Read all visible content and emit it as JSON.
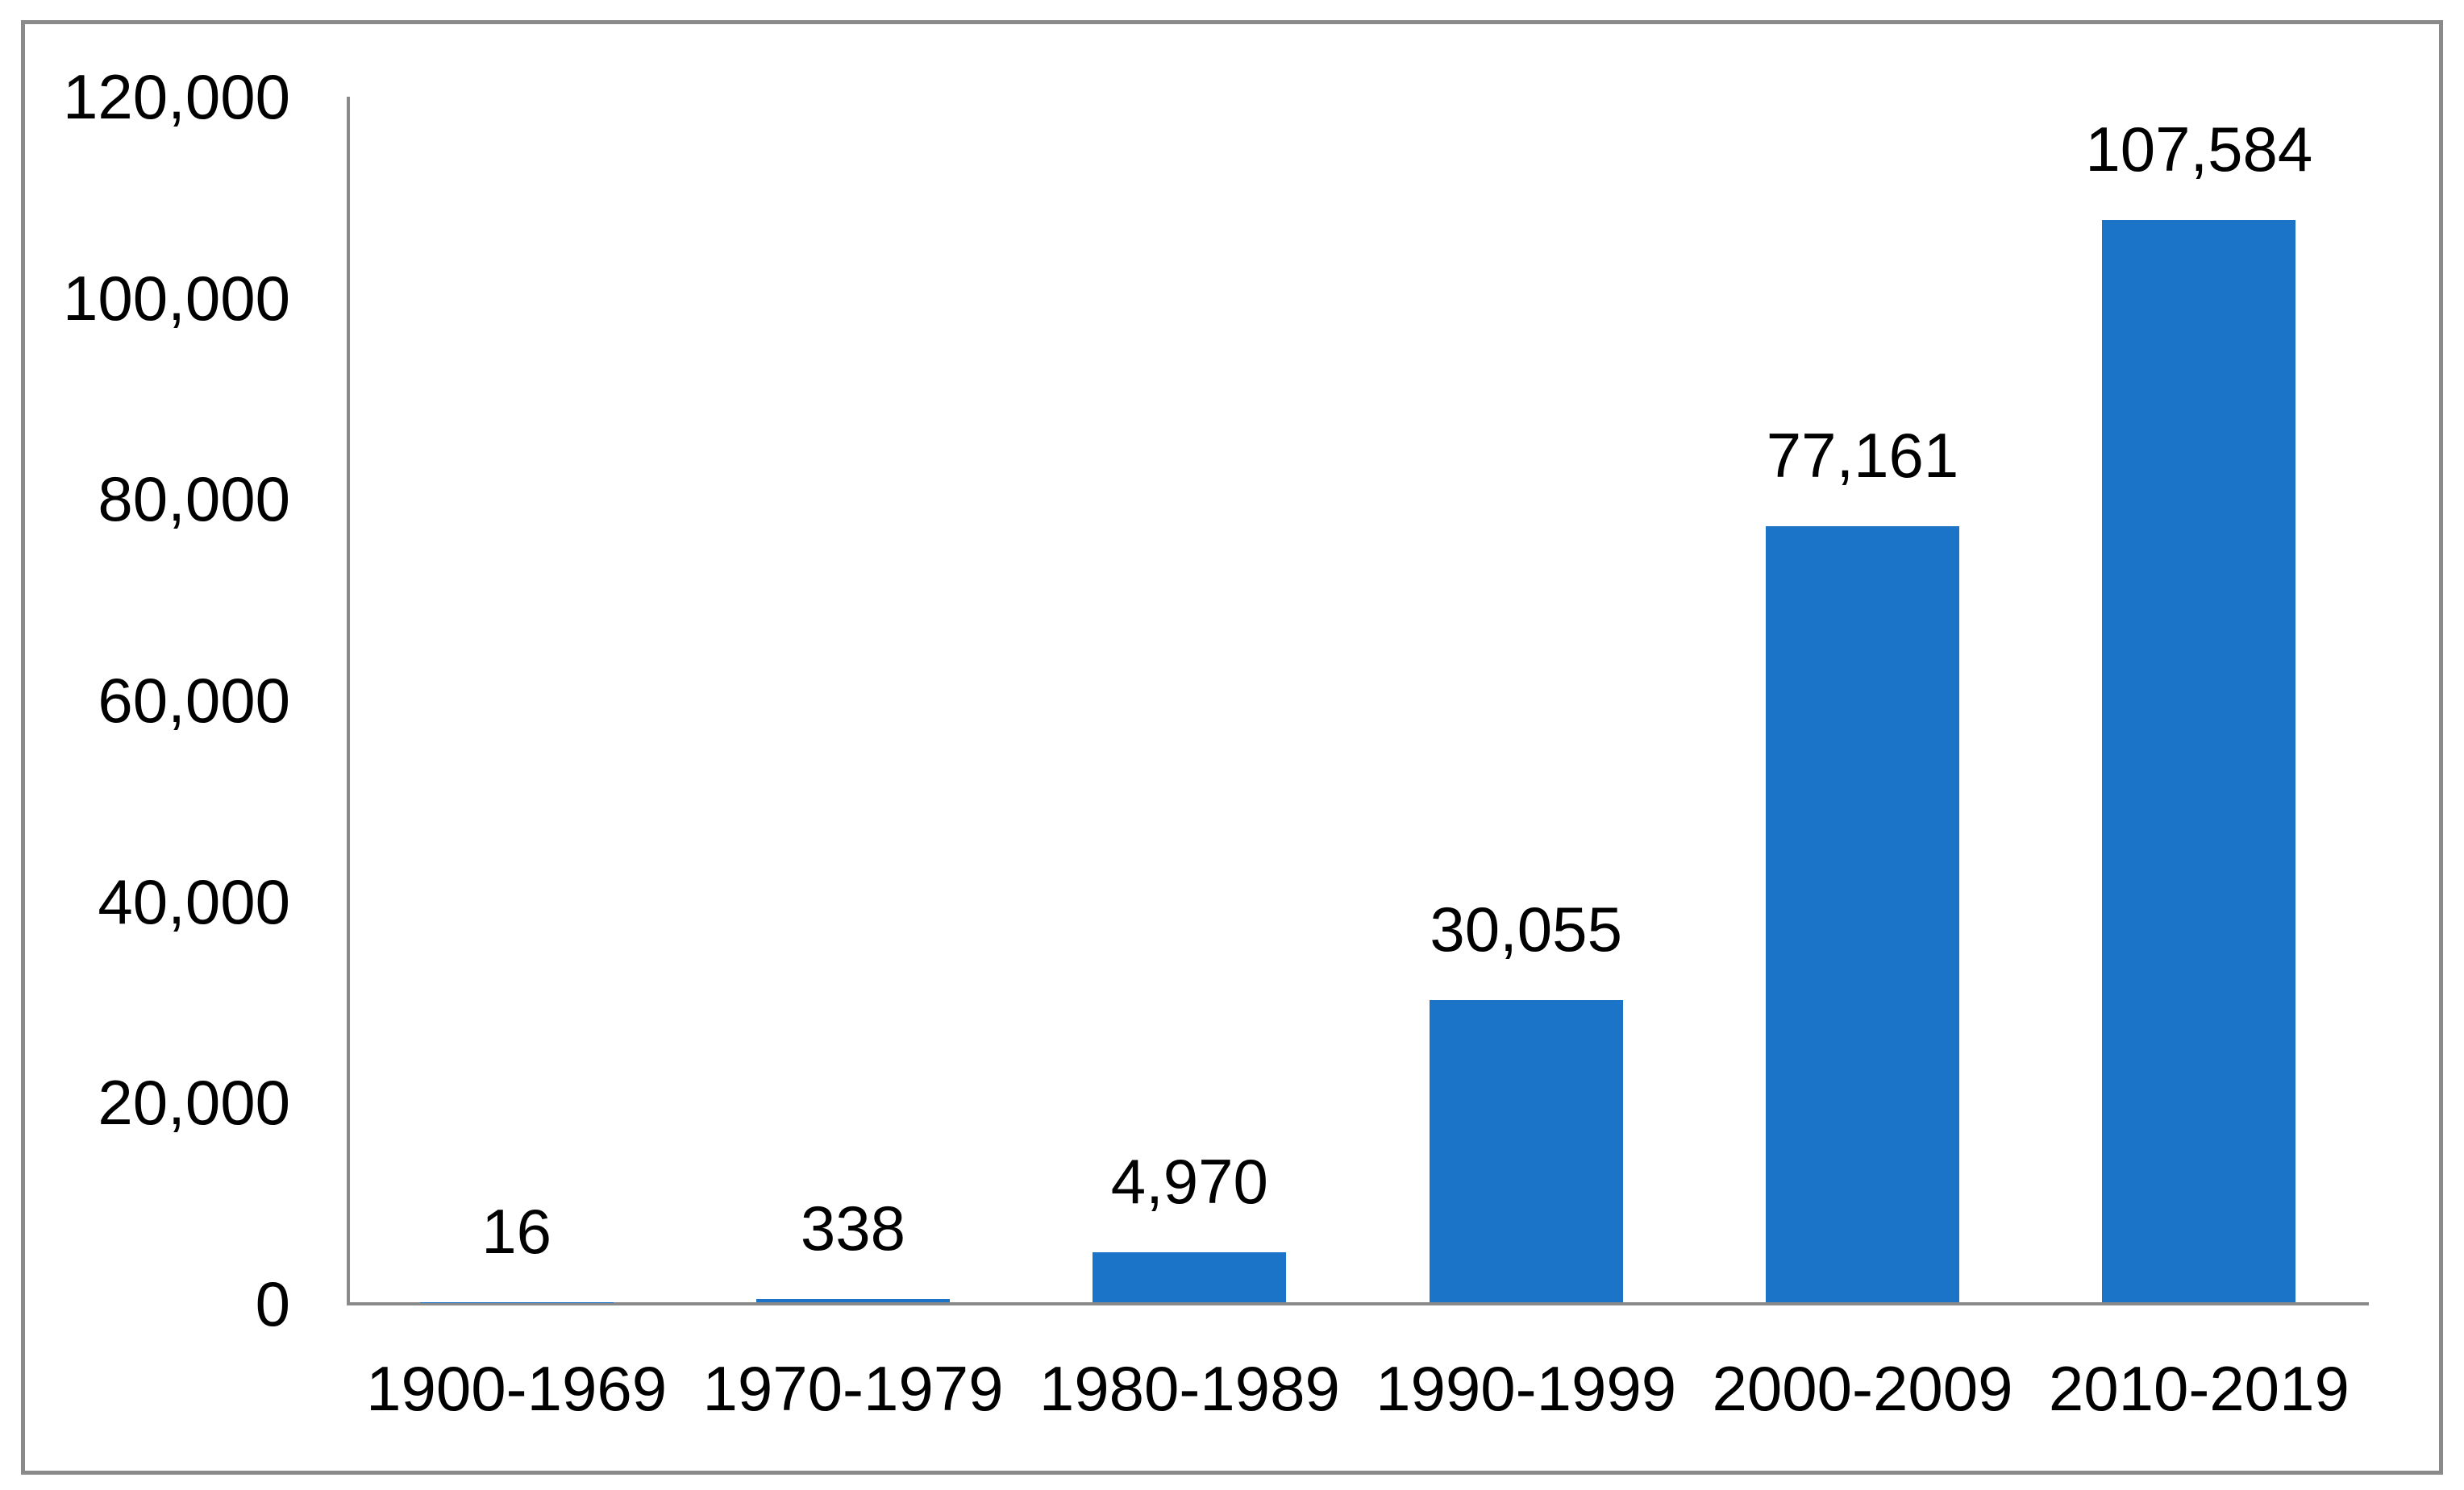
{
  "chart_data": {
    "type": "bar",
    "title": "",
    "xlabel": "",
    "ylabel": "",
    "categories": [
      "1900-1969",
      "1970-1979",
      "1980-1989",
      "1990-1999",
      "2000-2009",
      "2010-2019"
    ],
    "values": [
      16,
      338,
      4970,
      30055,
      77161,
      107584
    ],
    "data_labels": [
      "16",
      "338",
      "4,970",
      "30,055",
      "77,161",
      "107,584"
    ],
    "ylim": [
      0,
      120000
    ],
    "y_ticks": [
      0,
      20000,
      40000,
      60000,
      80000,
      100000,
      120000
    ],
    "y_tick_labels": [
      "0",
      "20,000",
      "40,000",
      "60,000",
      "80,000",
      "100,000",
      "120,000"
    ],
    "grid": false,
    "legend": null,
    "series_name": "",
    "colors": {
      "bar": "#1b74c8",
      "axis": "#8a8a8a",
      "frame_border": "#8a8a8a",
      "text": "#000000",
      "background": "#ffffff"
    }
  }
}
